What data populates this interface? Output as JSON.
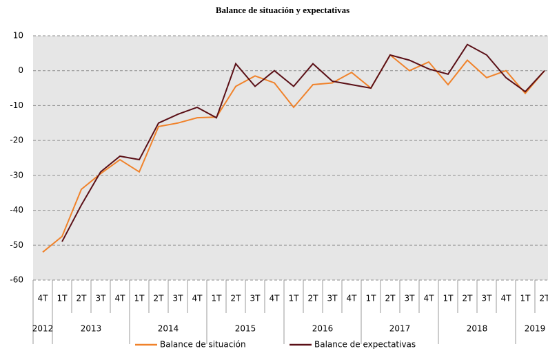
{
  "chart_data": {
    "type": "line",
    "title": "Balance de situación y expectativas",
    "year_groups": [
      {
        "label": "2012",
        "categories": [
          "4T"
        ]
      },
      {
        "label": "2013",
        "categories": [
          "1T",
          "2T",
          "3T",
          "4T"
        ]
      },
      {
        "label": "2014",
        "categories": [
          "1T",
          "2T",
          "3T",
          "4T"
        ]
      },
      {
        "label": "2015",
        "categories": [
          "1T",
          "2T",
          "3T",
          "4T"
        ]
      },
      {
        "label": "2016",
        "categories": [
          "1T",
          "2T",
          "3T",
          "4T"
        ]
      },
      {
        "label": "2017",
        "categories": [
          "1T",
          "2T",
          "3T",
          "4T"
        ]
      },
      {
        "label": "2018",
        "categories": [
          "1T",
          "2T",
          "3T",
          "4T"
        ]
      },
      {
        "label": "2019",
        "categories": [
          "1T",
          "2T"
        ]
      }
    ],
    "series": [
      {
        "name": "Balance de situación",
        "color": "#f0822a",
        "values": [
          -52,
          -47.5,
          -34,
          -29.5,
          -25.5,
          -29,
          -16,
          -15,
          -13.5,
          -13.3,
          -4.5,
          -1.5,
          -3.5,
          -10.5,
          -4,
          -3.5,
          -0.5,
          -5,
          4.5,
          0,
          2.5,
          -4,
          3,
          -2,
          0,
          -6.5,
          0
        ]
      },
      {
        "name": "Balance de expectativas",
        "color": "#5a0f16",
        "values": [
          null,
          -49,
          -38.5,
          -29,
          -24.5,
          -25.5,
          -15,
          -12.5,
          -10.5,
          -13.5,
          2,
          -4.5,
          0,
          -4.5,
          2,
          -3,
          -4,
          -5,
          4.5,
          3,
          0.5,
          -1,
          7.5,
          4.5,
          -2,
          -6,
          0
        ]
      }
    ],
    "ylim": [
      -60,
      10
    ],
    "yticks": [
      -60,
      -50,
      -40,
      -30,
      -20,
      -10,
      0,
      10
    ],
    "grid": true
  }
}
